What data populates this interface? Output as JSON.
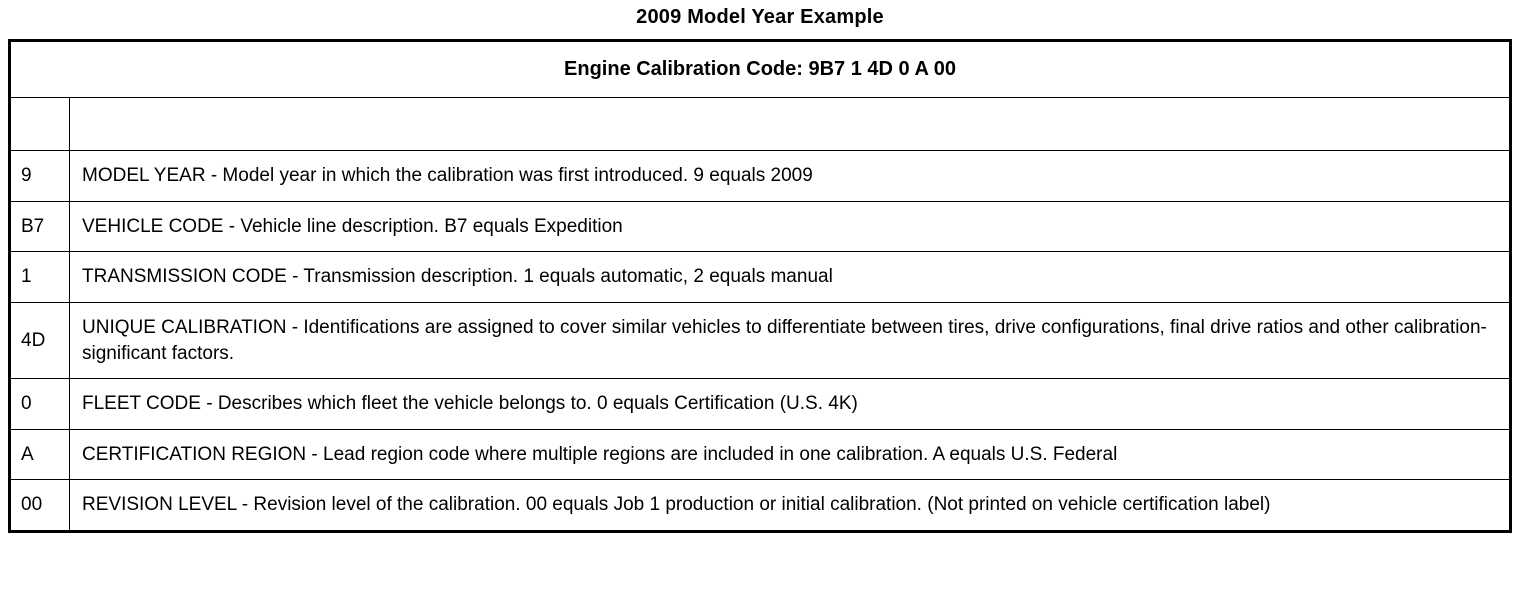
{
  "page_title": "2009 Model Year Example",
  "table": {
    "header": "Engine Calibration Code: 9B7 1 4D 0 A 00",
    "rows": [
      {
        "code": "9",
        "description": "MODEL YEAR - Model year in which the calibration was first introduced. 9 equals 2009"
      },
      {
        "code": "B7",
        "description": "VEHICLE CODE - Vehicle line description. B7 equals Expedition"
      },
      {
        "code": "1",
        "description": "TRANSMISSION CODE - Transmission description. 1 equals automatic, 2 equals manual"
      },
      {
        "code": "4D",
        "description": "UNIQUE CALIBRATION - Identifications are assigned to cover similar vehicles to differentiate between tires, drive configurations, final drive ratios and other calibration-significant factors."
      },
      {
        "code": "0",
        "description": "FLEET CODE - Describes which fleet the vehicle belongs to. 0 equals Certification (U.S. 4K)"
      },
      {
        "code": "A",
        "description": "CERTIFICATION REGION - Lead region code where multiple regions are included in one calibration. A equals U.S. Federal"
      },
      {
        "code": "00",
        "description": "REVISION LEVEL - Revision level of the calibration. 00 equals Job 1 production or initial calibration. (Not printed on vehicle certification label)"
      }
    ]
  }
}
